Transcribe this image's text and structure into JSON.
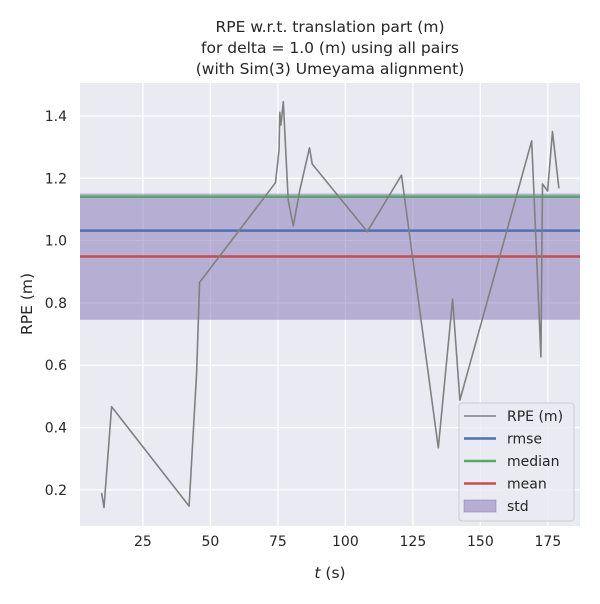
{
  "chart_data": {
    "type": "line",
    "title": [
      "RPE w.r.t. translation part (m)",
      "for delta = 1.0 (m) using all pairs",
      "(with Sim(3) Umeyama alignment)"
    ],
    "xlabel_italic": "t",
    "xlabel_rest": " (s)",
    "ylabel": "RPE (m)",
    "xlim": [
      1.7,
      186.9
    ],
    "ylim": [
      0.084,
      1.506
    ],
    "xticks": [
      25,
      50,
      75,
      100,
      125,
      150,
      175
    ],
    "xtick_labels": [
      "25",
      "50",
      "75",
      "100",
      "125",
      "150",
      "175"
    ],
    "yticks": [
      0.2,
      0.4,
      0.6,
      0.8,
      1.0,
      1.2,
      1.4
    ],
    "ytick_labels": [
      "0.2",
      "0.4",
      "0.6",
      "0.8",
      "1.0",
      "1.2",
      "1.4"
    ],
    "grid": true,
    "background": "#eaeaf2",
    "legend_position": "bottom-right",
    "series": [
      {
        "name": "RPE (m)",
        "color": "#808080",
        "x": [
          9.7,
          10.6,
          13.4,
          42.1,
          44.9,
          46.0,
          74.1,
          75.4,
          75.7,
          76.1,
          77.0,
          78.8,
          80.7,
          83.1,
          86.7,
          87.7,
          108.1,
          120.8,
          134.4,
          139.7,
          142.4,
          169.0,
          172.4,
          173.0,
          174.9,
          176.7,
          179.1
        ],
        "y": [
          0.19,
          0.143,
          0.467,
          0.148,
          0.575,
          0.866,
          1.186,
          1.289,
          1.412,
          1.371,
          1.446,
          1.13,
          1.047,
          1.162,
          1.298,
          1.246,
          1.029,
          1.21,
          0.335,
          0.812,
          0.488,
          1.32,
          0.627,
          1.182,
          1.159,
          1.35,
          1.168
        ]
      }
    ],
    "hlines": [
      {
        "name": "rmse",
        "value": 1.032,
        "color": "#4c72b0"
      },
      {
        "name": "median",
        "value": 1.141,
        "color": "#55a868"
      },
      {
        "name": "mean",
        "value": 0.949,
        "color": "#c44e52"
      }
    ],
    "band": {
      "name": "std",
      "low": 0.746,
      "high": 1.151,
      "color": "#8172b3"
    },
    "legend": [
      "RPE (m)",
      "rmse",
      "median",
      "mean",
      "std"
    ]
  }
}
